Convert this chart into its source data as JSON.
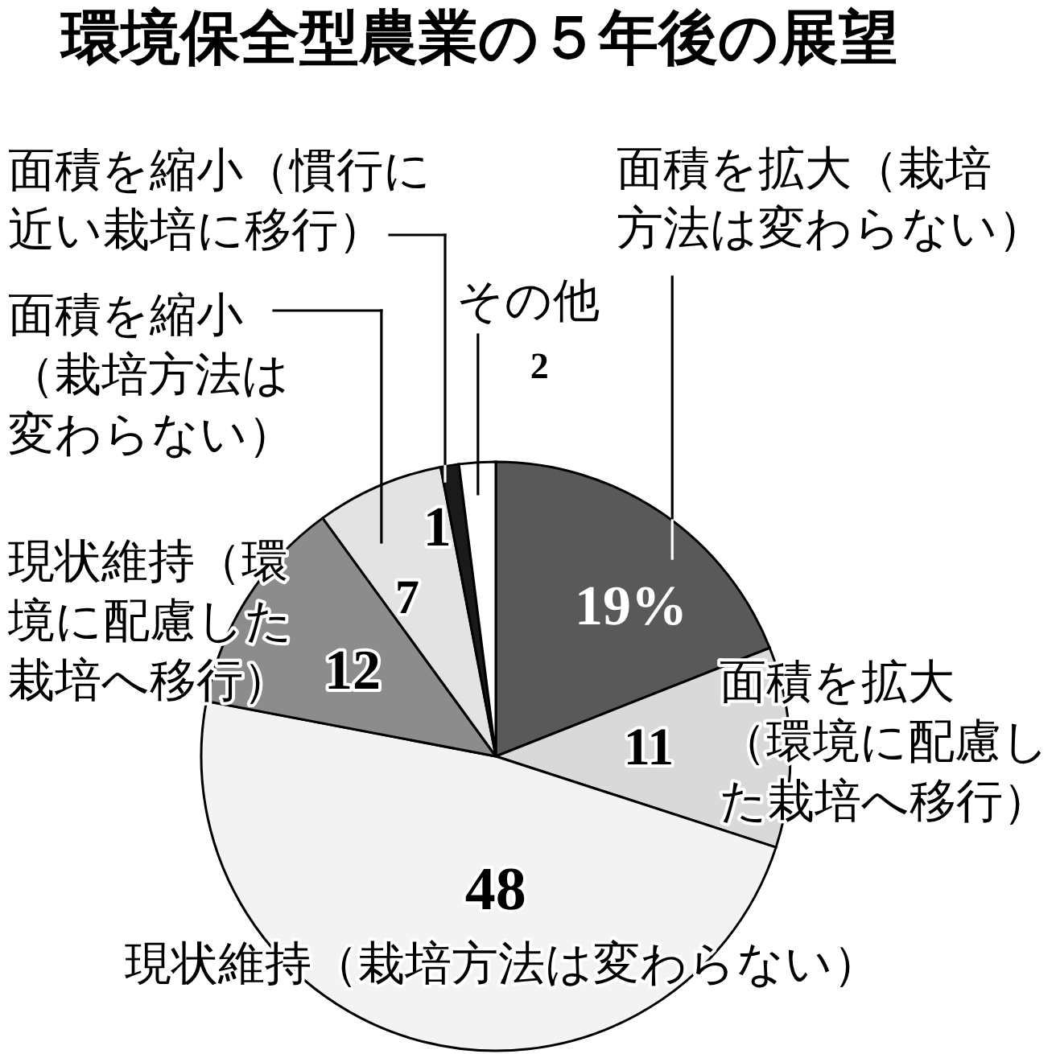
{
  "chart_data": {
    "type": "pie",
    "title": "環境保全型農業の５年後の展望",
    "categories": [
      "面積を拡大（栽培方法は変わらない）",
      "面積を拡大（環境に配慮した栽培へ移行）",
      "現状維持（栽培方法は変わらない）",
      "現状維持（環境に配慮した栽培へ移行）",
      "面積を縮小（栽培方法は変わらない）",
      "面積を縮小（慣行に近い栽培に移行）",
      "その他"
    ],
    "values": [
      19,
      11,
      48,
      12,
      7,
      1,
      2
    ],
    "colors": [
      "#595959",
      "#d9d9d9",
      "#f3f3f3",
      "#8c8c8c",
      "#e3e3e3",
      "#1a1a1a",
      "#ffffff"
    ],
    "value_labels": [
      "19%",
      "11",
      "48",
      "12",
      "7",
      "1",
      "2"
    ]
  }
}
